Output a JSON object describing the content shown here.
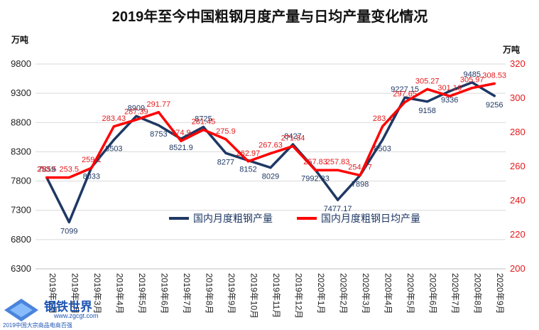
{
  "chart_data": {
    "type": "line",
    "title": "2019年至今中国粗钢月度产量与日均产量变化情况",
    "y_left_unit": "万吨",
    "y_right_unit": "万吨",
    "y_left_ticks": [
      "6300",
      "6800",
      "7300",
      "7800",
      "8300",
      "8800",
      "9300",
      "9800"
    ],
    "y_right_ticks": [
      "200",
      "220",
      "240",
      "260",
      "280",
      "300",
      "320"
    ],
    "ylim_left": [
      6300,
      9800
    ],
    "ylim_right": [
      200,
      320
    ],
    "categories": [
      "2019年1月",
      "2019年2月",
      "2019年3月",
      "2019年4月",
      "2019年5月",
      "2019年6月",
      "2019年7月",
      "2019年8月",
      "2019年9月",
      "2019年10月",
      "2019年11月",
      "2019年12月",
      "2020年1月",
      "2020年2月",
      "2020年3月",
      "2020年4月",
      "2020年5月",
      "2020年6月",
      "2020年7月",
      "2020年8月",
      "2020年9月"
    ],
    "series": [
      {
        "name": "国内月度粗钢产量",
        "axis": "left",
        "color": "#1f3864",
        "values": [
          7859,
          7099,
          8033,
          8503,
          8909,
          8753,
          8521.9,
          8725,
          8277,
          8152,
          8029,
          8427,
          7992.83,
          7477.17,
          7898,
          8503,
          9227.15,
          9158,
          9336,
          9485,
          9256
        ],
        "labels": [
          "7859",
          "7099",
          "8033",
          "8503",
          "8909",
          "8753",
          "8521.9",
          "8725",
          "8277",
          "8152",
          "8029",
          "8427",
          "7992.83",
          "7477.17",
          "7898",
          "8503",
          "9227.15",
          "9158",
          "9336",
          "9485",
          "9256"
        ]
      },
      {
        "name": "国内月度粗钢日均产量",
        "axis": "right",
        "color": "#ff0000",
        "values": [
          253.5,
          253.5,
          259.1,
          283.43,
          287.39,
          291.77,
          274.9,
          281.45,
          275.9,
          262.97,
          267.63,
          271.84,
          257.83,
          257.83,
          254.77,
          283.4,
          297.65,
          305.27,
          301.16,
          305.97,
          308.53
        ],
        "labels": [
          "253.5",
          "253.5",
          "259.1",
          "283.43",
          "287.39",
          "291.77",
          "274.9",
          "281.45",
          "275.9",
          "262.97",
          "267.63",
          "271.84",
          "257.83",
          "257.83",
          "254.77",
          "283.4",
          "297.65",
          "305.27",
          "301.16",
          "305.97",
          "308.53"
        ]
      }
    ],
    "grid": true,
    "legend_position": "center"
  },
  "watermark": {
    "title": "钢铁世界",
    "url": "www.zgcgt.com",
    "slogan": "2019中国大宗商品电商百强"
  }
}
